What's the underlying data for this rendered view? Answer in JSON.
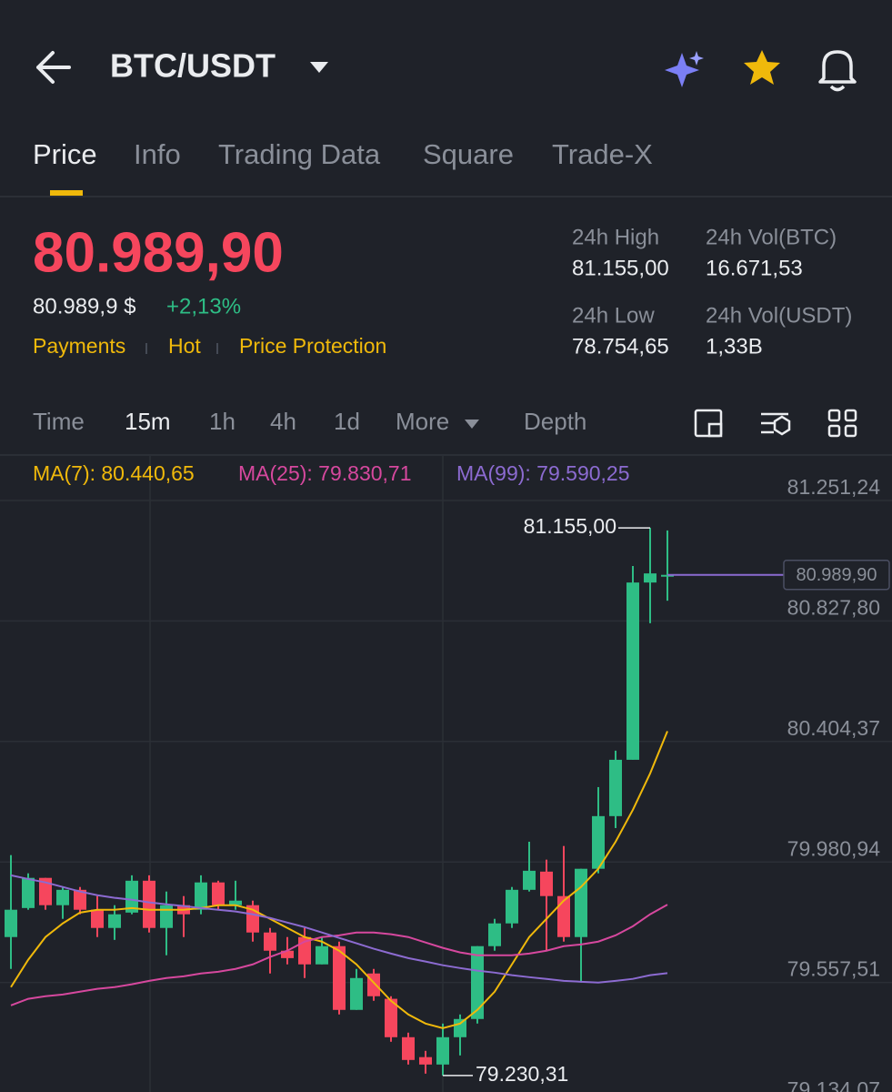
{
  "header": {
    "pair": "BTC/USDT"
  },
  "tabs": [
    "Price",
    "Info",
    "Trading Data",
    "Square",
    "Trade-X"
  ],
  "ticker": {
    "price": "80.989,90",
    "fiat_price": "80.989,9 $",
    "change": "+2,13%",
    "tags": [
      "Payments",
      "Hot",
      "Price Protection"
    ],
    "stats": [
      {
        "label": "24h High",
        "value": "81.155,00"
      },
      {
        "label": "24h Vol(BTC)",
        "value": "16.671,53"
      },
      {
        "label": "24h Low",
        "value": "78.754,65"
      },
      {
        "label": "24h Vol(USDT)",
        "value": "1,33B"
      }
    ]
  },
  "timeframes": [
    "Time",
    "15m",
    "1h",
    "4h",
    "1d",
    "More",
    "Depth"
  ],
  "chart_data": {
    "type": "candlestick",
    "open": [
      79717,
      79819,
      79925,
      79829,
      79883,
      79813,
      79749,
      79803,
      79915,
      79749,
      79829,
      79813,
      79909,
      79829,
      79829,
      79733,
      79669,
      79717,
      79621,
      79685,
      79461,
      79589,
      79500,
      79365,
      79295,
      79269,
      79365,
      79429,
      79685,
      79765,
      79883,
      79947,
      79861,
      79717,
      79957,
      80142,
      80340,
      80963,
      80985
    ],
    "high": [
      80005,
      79941,
      79925,
      79893,
      79893,
      79861,
      79829,
      79934,
      79934,
      79877,
      79861,
      79934,
      79915,
      79915,
      79845,
      79749,
      79717,
      79749,
      79717,
      79701,
      79605,
      79605,
      79509,
      79381,
      79317,
      79413,
      79445,
      79685,
      79781,
      79893,
      80052,
      79989,
      80037,
      79957,
      80244,
      80372,
      81021,
      81155,
      81146
    ],
    "low": [
      79605,
      79813,
      79813,
      79781,
      79797,
      79717,
      79707,
      79797,
      79733,
      79653,
      79717,
      79797,
      79813,
      79813,
      79701,
      79589,
      79621,
      79573,
      79621,
      79445,
      79461,
      79493,
      79349,
      79269,
      79237,
      79230.31,
      79301,
      79413,
      79669,
      79749,
      79877,
      79669,
      79701,
      79557,
      79941,
      80100,
      80340,
      80820,
      80899
    ],
    "close": [
      79813,
      79925,
      79829,
      79883,
      79813,
      79749,
      79797,
      79915,
      79749,
      79829,
      79797,
      79909,
      79829,
      79845,
      79733,
      79669,
      79643,
      79621,
      79685,
      79461,
      79573,
      79509,
      79365,
      79285,
      79269,
      79365,
      79429,
      79685,
      79765,
      79883,
      79950,
      79861,
      79717,
      79957,
      80142,
      80340,
      80963,
      80995,
      80989.9
    ],
    "up_color": "#2ebd85",
    "down_color": "#f6465d",
    "series": [
      {
        "name": "MA(7): 80.440,65",
        "color": "#f0b90b",
        "values": [
          79541,
          79637,
          79717,
          79765,
          79803,
          79813,
          79813,
          79819,
          79813,
          79813,
          79813,
          79819,
          79829,
          79829,
          79813,
          79781,
          79749,
          79717,
          79701,
          79669,
          79621,
          79557,
          79493,
          79445,
          79413,
          79397,
          79413,
          79461,
          79525,
          79621,
          79717,
          79781,
          79845,
          79893,
          79957,
          80052,
          80164,
          80292,
          80440.65
        ]
      },
      {
        "name": "MA(25): 79.830,71",
        "color": "#d6489e",
        "values": [
          79477,
          79500,
          79509,
          79515,
          79525,
          79535,
          79541,
          79551,
          79563,
          79573,
          79579,
          79589,
          79595,
          79605,
          79621,
          79647,
          79669,
          79701,
          79717,
          79723,
          79733,
          79733,
          79727,
          79717,
          79698,
          79679,
          79663,
          79653,
          79653,
          79653,
          79659,
          79669,
          79685,
          79691,
          79701,
          79723,
          79755,
          79797,
          79830.71
        ]
      },
      {
        "name": "MA(99): 79.590,25",
        "color": "#8c6bd1",
        "values": [
          79934,
          79921,
          79909,
          79893,
          79877,
          79864,
          79855,
          79848,
          79839,
          79832,
          79826,
          79819,
          79813,
          79807,
          79797,
          79784,
          79768,
          79752,
          79733,
          79714,
          79695,
          79676,
          79659,
          79643,
          79631,
          79618,
          79608,
          79599,
          79592,
          79583,
          79576,
          79570,
          79563,
          79560,
          79557,
          79563,
          79570,
          79583,
          79590.25
        ]
      }
    ],
    "ylim": [
      79134.07,
      81251.24
    ],
    "yticks": [
      {
        "value": 81251.24,
        "label": "81.251,24"
      },
      {
        "value": 80827.8,
        "label": "80.827,80"
      },
      {
        "value": 80404.37,
        "label": "80.404,37"
      },
      {
        "value": 79980.94,
        "label": "79.980,94"
      },
      {
        "value": 79557.51,
        "label": "79.557,51"
      },
      {
        "value": 79134.07,
        "label": "79.134,07"
      }
    ],
    "grid": true,
    "last_price": {
      "value": 80989.9,
      "label": "80.989,90"
    },
    "high_marker": {
      "value": 81155,
      "label": "81.155,00"
    },
    "low_marker": {
      "value": 79230.31,
      "label": "79.230,31"
    }
  }
}
